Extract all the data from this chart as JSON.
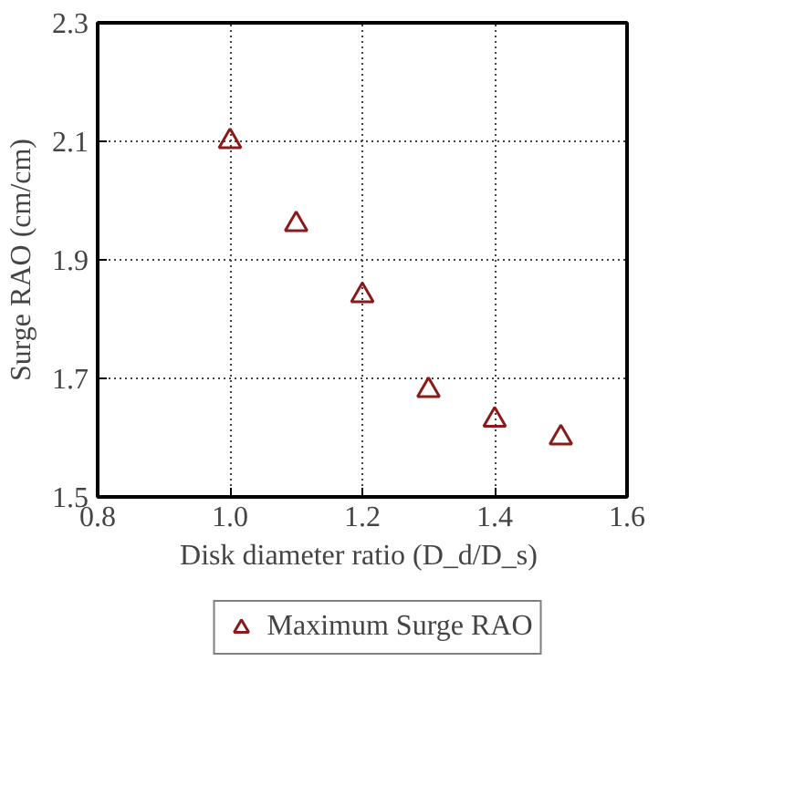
{
  "chart_data": {
    "type": "scatter",
    "xlabel": "Disk diameter ratio  (D_d/D_s)",
    "ylabel": "Surge RAO (cm/cm)",
    "x": [
      1.0,
      1.1,
      1.2,
      1.3,
      1.4,
      1.5
    ],
    "series": [
      {
        "name": "Maximum Surge RAO",
        "color": "#8b1a1a",
        "values": [
          2.1,
          1.96,
          1.84,
          1.68,
          1.63,
          1.6
        ]
      }
    ],
    "xlim": [
      0.8,
      1.6
    ],
    "xticks": [
      0.8,
      {
        "value": 1.0,
        "label": "1.0"
      },
      1.2,
      1.4,
      1.6
    ],
    "ylim": [
      1.5,
      2.3
    ],
    "yticks": [
      1.5,
      1.7,
      1.9,
      2.1,
      2.3
    ],
    "grid": true,
    "legend": "bottom",
    "marker": "triangle"
  }
}
